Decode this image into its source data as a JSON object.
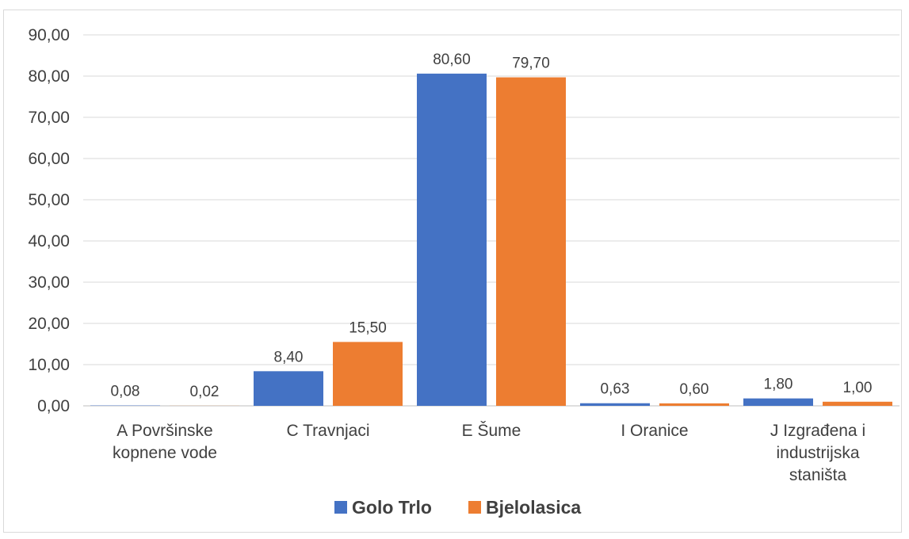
{
  "chart_data": {
    "type": "bar",
    "categories": [
      [
        "A Površinske",
        "kopnene vode"
      ],
      [
        "C Travnjaci"
      ],
      [
        "E Šume"
      ],
      [
        "I Oranice"
      ],
      [
        "J Izgrađena i",
        "industrijska",
        "staništa"
      ]
    ],
    "series": [
      {
        "name": "Golo Trlo",
        "color": "#4472c4",
        "values": [
          0.08,
          8.4,
          80.6,
          0.63,
          1.8
        ],
        "labels": [
          "0,08",
          "8,40",
          "80,60",
          "0,63",
          "1,80"
        ]
      },
      {
        "name": "Bjelolasica",
        "color": "#ed7d31",
        "values": [
          0.02,
          15.5,
          79.7,
          0.6,
          1.0
        ],
        "labels": [
          "0,02",
          "15,50",
          "79,70",
          "0,60",
          "1,00"
        ]
      }
    ],
    "y_ticks": [
      "0,00",
      "10,00",
      "20,00",
      "30,00",
      "40,00",
      "50,00",
      "60,00",
      "70,00",
      "80,00",
      "90,00"
    ],
    "ylim": [
      0,
      90
    ],
    "grid": true,
    "legend_position": "bottom"
  }
}
